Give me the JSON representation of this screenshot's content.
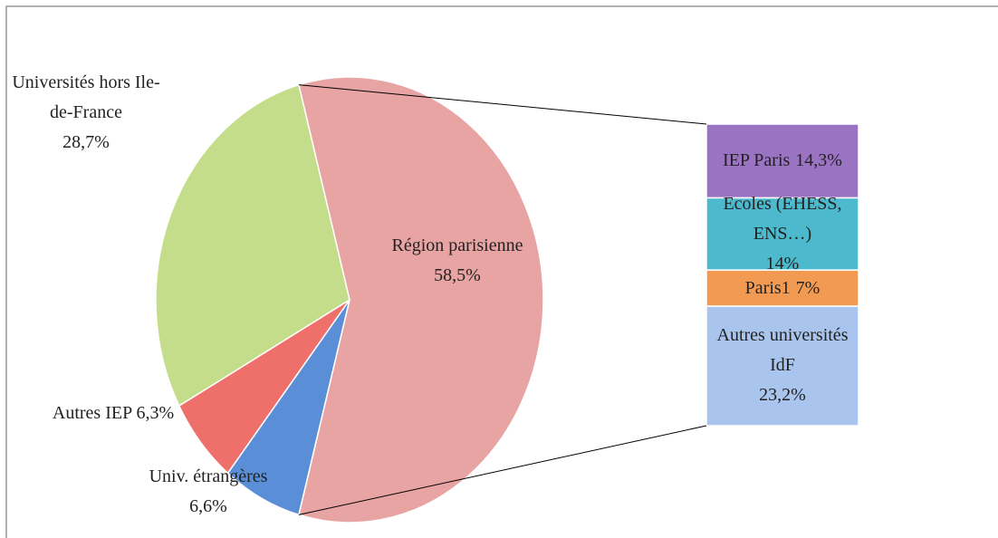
{
  "chart_data": {
    "type": "pie-of-bar",
    "categories": [
      "Région parisienne",
      "Univ. étrangères",
      "Autres IEP",
      "Universités hors Ile-de-France"
    ],
    "values": [
      58.5,
      6.6,
      6.3,
      28.7
    ],
    "value_labels": [
      "58,5%",
      "6,6%",
      "6,3%",
      "28,7%"
    ],
    "colors": [
      "#e8a3a3",
      "#5a8fd8",
      "#ef6f6b",
      "#c3dd8a"
    ],
    "bar": {
      "categories": [
        "Autres universités IdF",
        "Paris1",
        "Ecoles (EHESS, ENS…)",
        "IEP Paris"
      ],
      "values": [
        23.2,
        7,
        14,
        14.3
      ],
      "value_labels": [
        "23,2%",
        "7%",
        "14%",
        "14,3%"
      ],
      "colors": [
        "#a9c5ee",
        "#f39a52",
        "#4cb9cd",
        "#9a73c2"
      ]
    }
  }
}
